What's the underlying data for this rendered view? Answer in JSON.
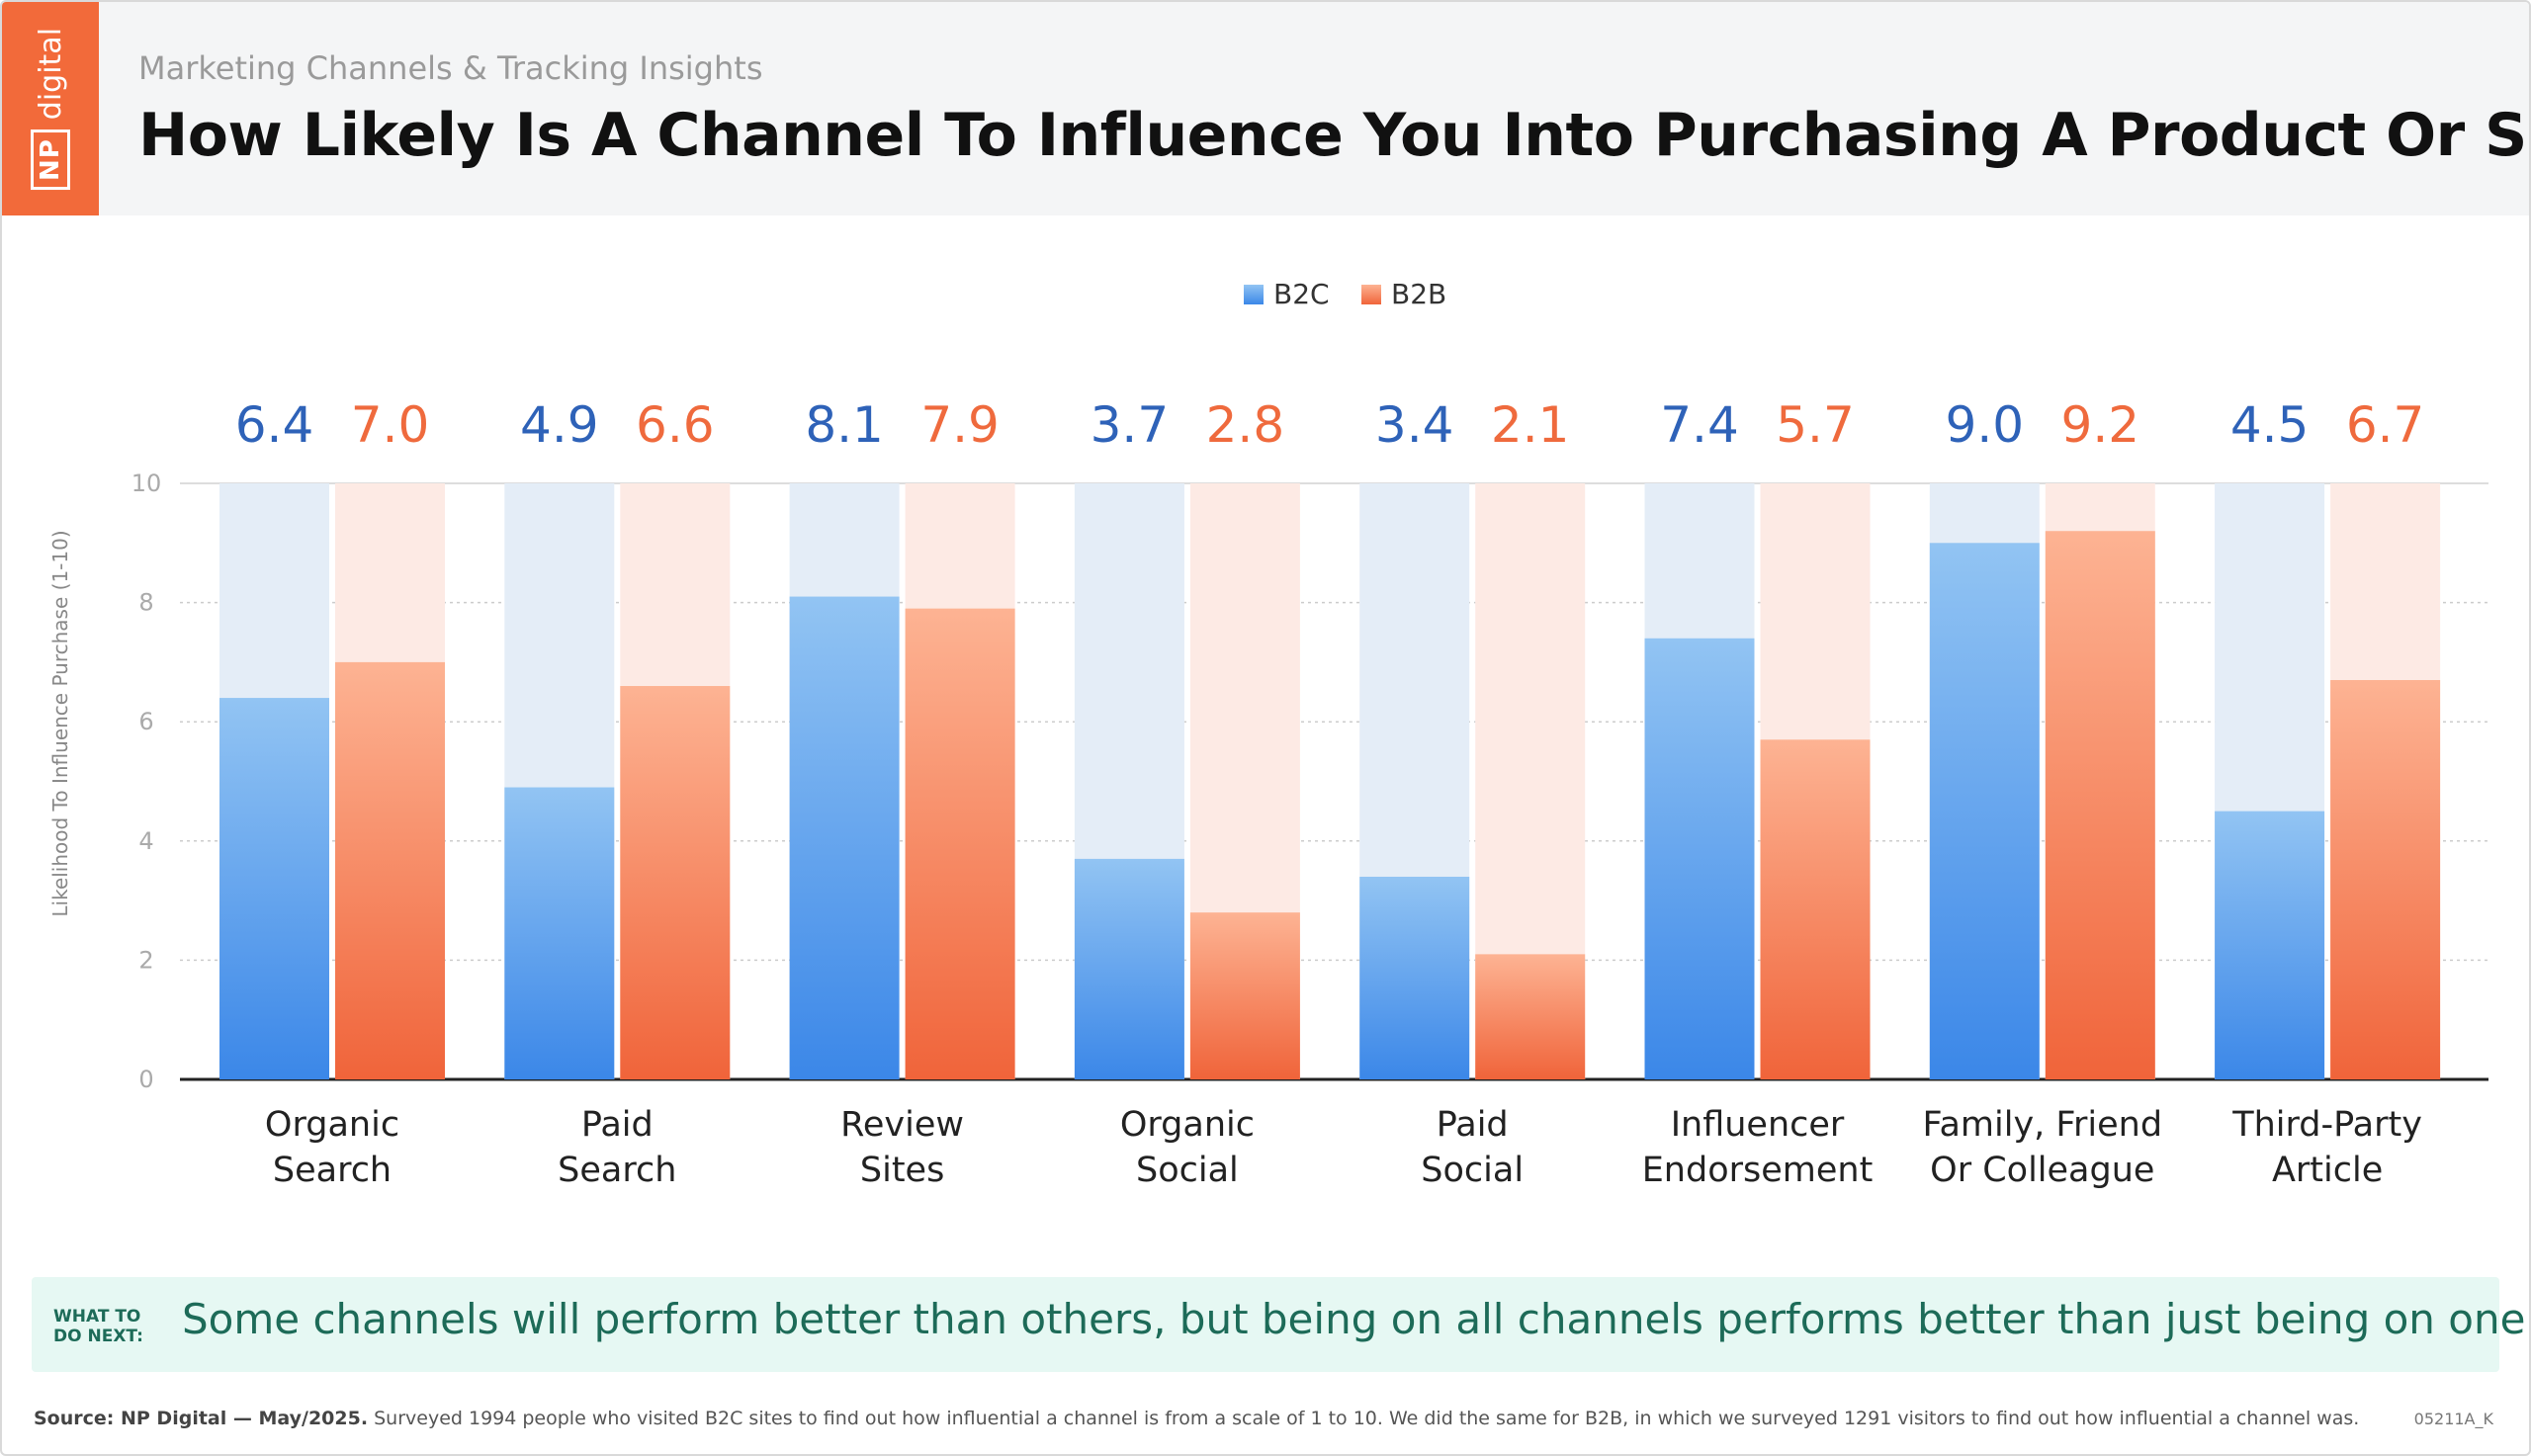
{
  "header": {
    "subtitle": "Marketing Channels & Tracking Insights",
    "title": "How Likely Is A Channel To Influence You Into Purchasing A Product Or Service?",
    "logo_np": "NP",
    "logo_digital": "digital"
  },
  "colors": {
    "brand": "#f26a3a",
    "b2c": "#3b87e8",
    "b2c_light": "#92c4f3",
    "b2c_bg": "#e4edf7",
    "b2c_text": "#2e62b8",
    "b2b": "#f0643a",
    "b2b_light": "#fdb393",
    "b2b_bg": "#fdeae4",
    "b2b_text": "#ef6a3d",
    "next_bg": "#e6f8f3",
    "next_text": "#1d6b58"
  },
  "chart_data": {
    "type": "bar",
    "ylabel": "Likelihood To Influence Purchase (1-10)",
    "ylim": [
      0,
      10
    ],
    "yticks": [
      "0",
      "2",
      "4",
      "6",
      "8",
      "10"
    ],
    "categories": [
      [
        "Organic",
        "Search"
      ],
      [
        "Paid",
        "Search"
      ],
      [
        "Review",
        "Sites"
      ],
      [
        "Organic",
        "Social"
      ],
      [
        "Paid",
        "Social"
      ],
      [
        "Influencer",
        "Endorsement"
      ],
      [
        "Family, Friend",
        "Or Colleague"
      ],
      [
        "Third-Party",
        "Article"
      ]
    ],
    "series": [
      {
        "name": "B2C",
        "values": [
          6.4,
          4.9,
          8.1,
          3.7,
          3.4,
          7.4,
          9.0,
          4.5
        ],
        "labels": [
          "6.4",
          "4.9",
          "8.1",
          "3.7",
          "3.4",
          "7.4",
          "9.0",
          "4.5"
        ]
      },
      {
        "name": "B2B",
        "values": [
          7.0,
          6.6,
          7.9,
          2.8,
          2.1,
          5.7,
          9.2,
          6.7
        ],
        "labels": [
          "7.0",
          "6.6",
          "7.9",
          "2.8",
          "2.1",
          "5.7",
          "9.2",
          "6.7"
        ]
      }
    ],
    "legend_position": "top-center",
    "grid": true
  },
  "next_steps": {
    "label_line1": "WHAT TO",
    "label_line2": "DO NEXT:",
    "text": "Some channels will perform better than others, but being on all channels performs better than just being on one or two."
  },
  "footer": {
    "source_bold": "Source: NP Digital — May/2025.",
    "source_text": " Surveyed 1994 people who visited B2C sites to find out how influential a channel is from a scale of 1 to 10. We did the same for B2B, in which we surveyed 1291 visitors to find out how influential a channel was.",
    "code": "05211A_K"
  }
}
